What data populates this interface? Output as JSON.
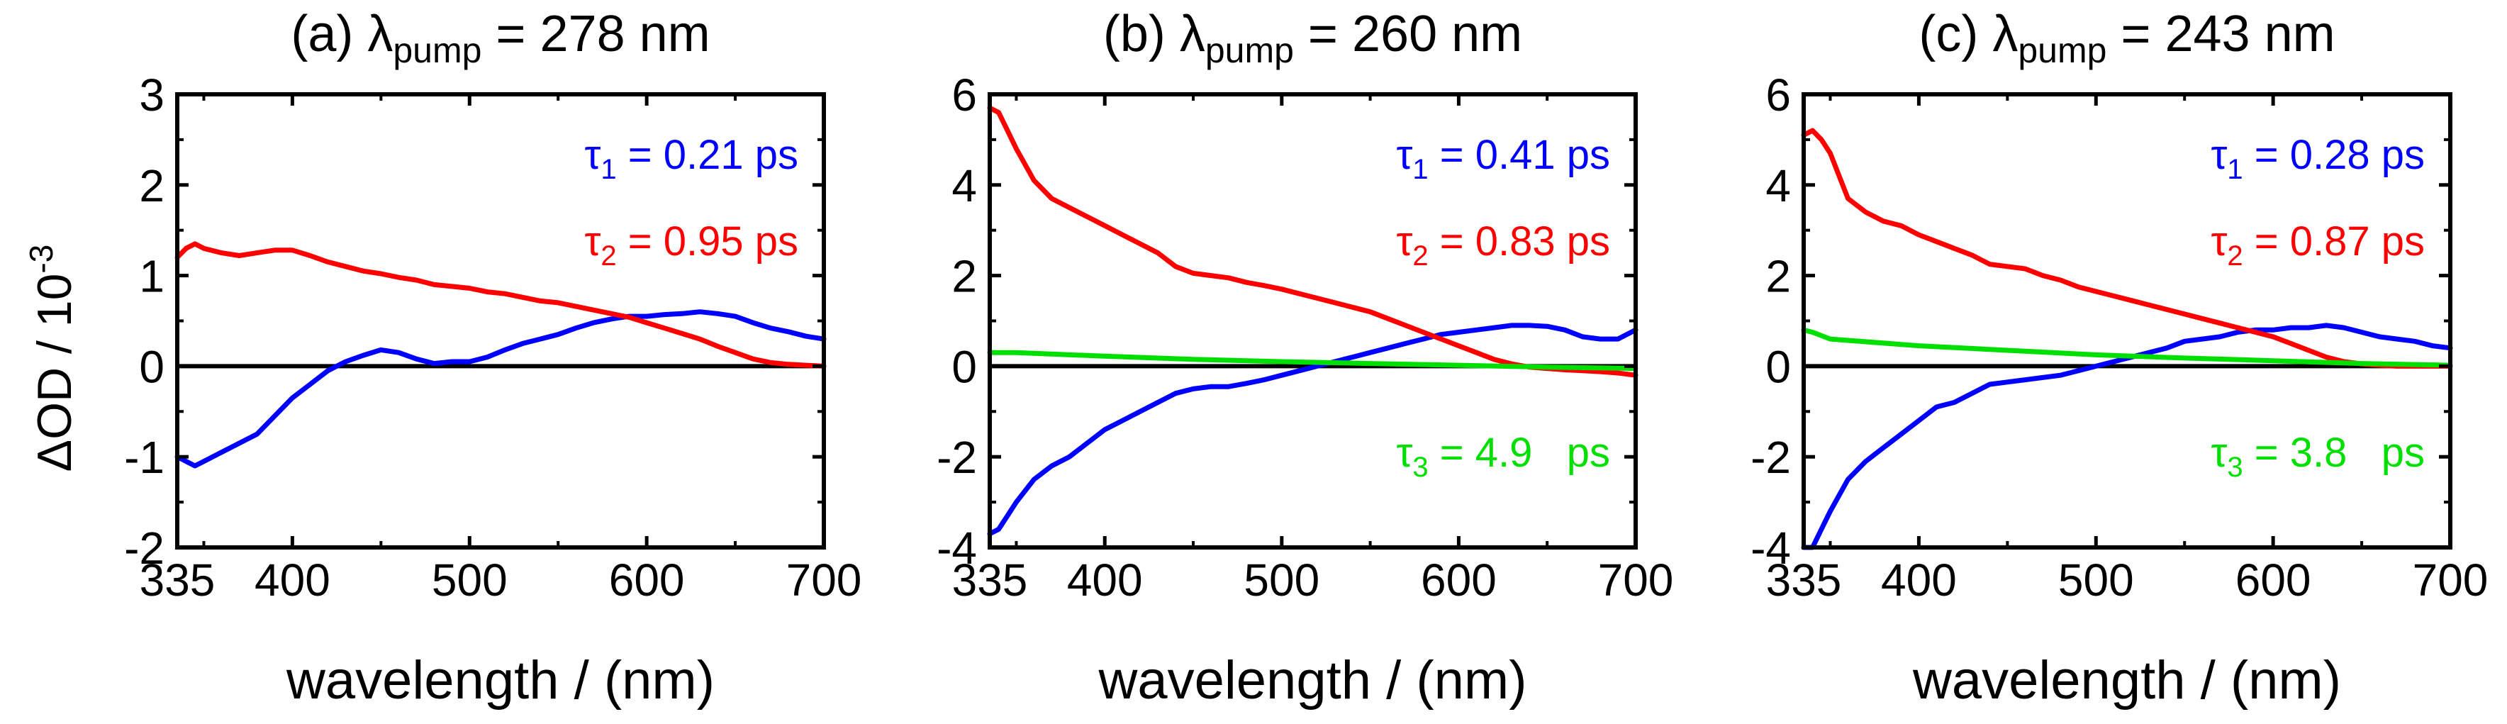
{
  "figure": {
    "shared_ylabel_main": "ΔOD / 10",
    "shared_ylabel_exp": "-3"
  },
  "chart_data": [
    {
      "type": "line",
      "panel": "(a)",
      "title_prefix": "(a) λ",
      "title_sub": "pump",
      "title_suffix": " = 278 nm",
      "xlabel": "wavelength / (nm)",
      "ylabel": "ΔOD / 10^-3",
      "xlim": [
        335,
        700
      ],
      "ylim": [
        -2,
        3
      ],
      "xticks": [
        335,
        400,
        500,
        600,
        700
      ],
      "yticks": [
        -2,
        -1,
        0,
        1,
        2,
        3
      ],
      "ytick_labels": [
        "-2",
        "-1",
        "0",
        "1",
        "2",
        "3"
      ],
      "zero_line": true,
      "annotations": [
        {
          "symbol": "τ",
          "sub": "1",
          "text": " = 0.21 ps",
          "color": "#0000ff"
        },
        {
          "symbol": "τ",
          "sub": "2",
          "text": " = 0.95 ps",
          "color": "#ff0000"
        }
      ],
      "series": [
        {
          "name": "τ1",
          "color": "#0000ff",
          "x": [
            335,
            340,
            345,
            350,
            360,
            370,
            380,
            390,
            400,
            410,
            420,
            430,
            440,
            450,
            460,
            470,
            480,
            490,
            500,
            510,
            520,
            530,
            540,
            550,
            560,
            570,
            580,
            590,
            600,
            610,
            620,
            630,
            640,
            650,
            660,
            670,
            680,
            690,
            700
          ],
          "y": [
            -1.0,
            -1.05,
            -1.1,
            -1.05,
            -0.95,
            -0.85,
            -0.75,
            -0.55,
            -0.35,
            -0.2,
            -0.05,
            0.05,
            0.12,
            0.18,
            0.15,
            0.08,
            0.03,
            0.05,
            0.05,
            0.1,
            0.18,
            0.25,
            0.3,
            0.35,
            0.42,
            0.48,
            0.52,
            0.55,
            0.55,
            0.57,
            0.58,
            0.6,
            0.58,
            0.55,
            0.48,
            0.42,
            0.38,
            0.33,
            0.3
          ]
        },
        {
          "name": "τ2",
          "color": "#ff0000",
          "x": [
            335,
            340,
            345,
            350,
            360,
            370,
            380,
            390,
            400,
            410,
            420,
            430,
            440,
            450,
            460,
            470,
            480,
            490,
            500,
            510,
            520,
            530,
            540,
            550,
            560,
            570,
            580,
            590,
            600,
            610,
            620,
            630,
            640,
            650,
            660,
            670,
            680,
            690,
            700
          ],
          "y": [
            1.2,
            1.3,
            1.35,
            1.3,
            1.25,
            1.22,
            1.25,
            1.28,
            1.28,
            1.22,
            1.15,
            1.1,
            1.05,
            1.02,
            0.98,
            0.95,
            0.9,
            0.88,
            0.86,
            0.82,
            0.8,
            0.76,
            0.72,
            0.7,
            0.66,
            0.62,
            0.58,
            0.54,
            0.48,
            0.42,
            0.36,
            0.3,
            0.22,
            0.15,
            0.08,
            0.04,
            0.02,
            0.01,
            0.0
          ]
        }
      ]
    },
    {
      "type": "line",
      "panel": "(b)",
      "title_prefix": "(b) λ",
      "title_sub": "pump",
      "title_suffix": " = 260 nm",
      "xlabel": "wavelength / (nm)",
      "ylabel": "",
      "xlim": [
        335,
        700
      ],
      "ylim": [
        -4,
        6
      ],
      "xticks": [
        335,
        400,
        500,
        600,
        700
      ],
      "yticks": [
        -4,
        -2,
        0,
        2,
        4,
        6
      ],
      "ytick_labels": [
        "-4",
        "-2",
        "0",
        "2",
        "4",
        "6"
      ],
      "zero_line": true,
      "annotations": [
        {
          "symbol": "τ",
          "sub": "1",
          "text": " = 0.41 ps",
          "color": "#0000ff"
        },
        {
          "symbol": "τ",
          "sub": "2",
          "text": " = 0.83 ps",
          "color": "#ff0000"
        },
        {
          "symbol": "τ",
          "sub": "3",
          "text": " = 4.9   ps",
          "color": "#00e000"
        }
      ],
      "series": [
        {
          "name": "τ1",
          "color": "#0000ff",
          "x": [
            335,
            340,
            345,
            350,
            360,
            370,
            380,
            390,
            400,
            410,
            420,
            430,
            440,
            450,
            460,
            470,
            480,
            490,
            500,
            510,
            520,
            530,
            540,
            550,
            560,
            570,
            580,
            590,
            600,
            610,
            620,
            630,
            640,
            650,
            660,
            670,
            680,
            690,
            700
          ],
          "y": [
            -3.7,
            -3.6,
            -3.3,
            -3.0,
            -2.5,
            -2.2,
            -2.0,
            -1.7,
            -1.4,
            -1.2,
            -1.0,
            -0.8,
            -0.6,
            -0.5,
            -0.45,
            -0.45,
            -0.38,
            -0.3,
            -0.2,
            -0.1,
            0.0,
            0.1,
            0.2,
            0.3,
            0.4,
            0.5,
            0.6,
            0.7,
            0.75,
            0.8,
            0.85,
            0.9,
            0.9,
            0.88,
            0.8,
            0.65,
            0.6,
            0.6,
            0.8
          ]
        },
        {
          "name": "τ2",
          "color": "#ff0000",
          "x": [
            335,
            340,
            345,
            350,
            360,
            370,
            380,
            390,
            400,
            410,
            420,
            430,
            440,
            450,
            460,
            470,
            480,
            490,
            500,
            510,
            520,
            530,
            540,
            550,
            560,
            570,
            580,
            590,
            600,
            610,
            620,
            630,
            640,
            650,
            660,
            670,
            680,
            690,
            700
          ],
          "y": [
            5.7,
            5.6,
            5.2,
            4.8,
            4.1,
            3.7,
            3.5,
            3.3,
            3.1,
            2.9,
            2.7,
            2.5,
            2.2,
            2.05,
            2.0,
            1.95,
            1.85,
            1.78,
            1.7,
            1.6,
            1.5,
            1.4,
            1.3,
            1.2,
            1.05,
            0.9,
            0.75,
            0.6,
            0.45,
            0.3,
            0.15,
            0.05,
            -0.02,
            -0.05,
            -0.08,
            -0.1,
            -0.12,
            -0.15,
            -0.2
          ]
        },
        {
          "name": "τ3",
          "color": "#00e000",
          "x": [
            335,
            350,
            400,
            450,
            500,
            550,
            600,
            650,
            700
          ],
          "y": [
            0.3,
            0.3,
            0.22,
            0.15,
            0.1,
            0.06,
            0.02,
            -0.02,
            -0.05
          ]
        }
      ]
    },
    {
      "type": "line",
      "panel": "(c)",
      "title_prefix": "(c) λ",
      "title_sub": "pump",
      "title_suffix": " = 243 nm",
      "xlabel": "wavelength / (nm)",
      "ylabel": "",
      "xlim": [
        335,
        700
      ],
      "ylim": [
        -4,
        6
      ],
      "xticks": [
        335,
        400,
        500,
        600,
        700
      ],
      "yticks": [
        -4,
        -2,
        0,
        2,
        4,
        6
      ],
      "ytick_labels": [
        "-4",
        "-2",
        "0",
        "2",
        "4",
        "6"
      ],
      "zero_line": true,
      "annotations": [
        {
          "symbol": "τ",
          "sub": "1",
          "text": " = 0.28 ps",
          "color": "#0000ff"
        },
        {
          "symbol": "τ",
          "sub": "2",
          "text": " = 0.87 ps",
          "color": "#ff0000"
        },
        {
          "symbol": "τ",
          "sub": "3",
          "text": " = 3.8   ps",
          "color": "#00e000"
        }
      ],
      "series": [
        {
          "name": "τ1",
          "color": "#0000ff",
          "x": [
            335,
            340,
            345,
            350,
            360,
            370,
            380,
            390,
            400,
            410,
            420,
            430,
            440,
            450,
            460,
            470,
            480,
            490,
            500,
            510,
            520,
            530,
            540,
            550,
            560,
            570,
            580,
            590,
            600,
            610,
            620,
            630,
            640,
            650,
            660,
            670,
            680,
            690,
            700
          ],
          "y": [
            -4.0,
            -4.0,
            -3.6,
            -3.2,
            -2.5,
            -2.1,
            -1.8,
            -1.5,
            -1.2,
            -0.9,
            -0.8,
            -0.6,
            -0.4,
            -0.35,
            -0.3,
            -0.25,
            -0.2,
            -0.1,
            0.0,
            0.1,
            0.2,
            0.3,
            0.4,
            0.55,
            0.6,
            0.65,
            0.75,
            0.8,
            0.8,
            0.85,
            0.85,
            0.9,
            0.85,
            0.75,
            0.65,
            0.6,
            0.55,
            0.45,
            0.4
          ]
        },
        {
          "name": "τ2",
          "color": "#ff0000",
          "x": [
            335,
            340,
            345,
            350,
            360,
            370,
            380,
            390,
            400,
            410,
            420,
            430,
            440,
            450,
            460,
            470,
            480,
            490,
            500,
            510,
            520,
            530,
            540,
            550,
            560,
            570,
            580,
            590,
            600,
            610,
            620,
            630,
            640,
            650,
            660,
            670,
            680,
            690,
            700
          ],
          "y": [
            5.1,
            5.2,
            5.0,
            4.7,
            3.7,
            3.4,
            3.2,
            3.1,
            2.9,
            2.75,
            2.6,
            2.45,
            2.25,
            2.2,
            2.15,
            2.0,
            1.9,
            1.75,
            1.65,
            1.55,
            1.45,
            1.35,
            1.25,
            1.15,
            1.05,
            0.95,
            0.85,
            0.75,
            0.65,
            0.5,
            0.35,
            0.2,
            0.1,
            0.05,
            0.02,
            0.0,
            0.0,
            0.0,
            0.0
          ]
        },
        {
          "name": "τ3",
          "color": "#00e000",
          "x": [
            335,
            340,
            350,
            400,
            450,
            500,
            550,
            600,
            650,
            700
          ],
          "y": [
            0.8,
            0.75,
            0.6,
            0.45,
            0.35,
            0.25,
            0.18,
            0.12,
            0.06,
            0.02
          ]
        }
      ]
    }
  ]
}
